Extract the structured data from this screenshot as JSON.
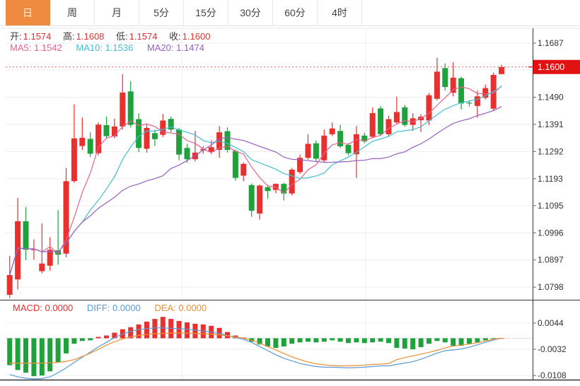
{
  "toolbar": {
    "tabs": [
      {
        "label": "日",
        "active": true
      },
      {
        "label": "周",
        "active": false
      },
      {
        "label": "月",
        "active": false
      },
      {
        "label": "5分",
        "active": false
      },
      {
        "label": "15分",
        "active": false
      },
      {
        "label": "30分",
        "active": false
      },
      {
        "label": "60分",
        "active": false
      },
      {
        "label": "4时",
        "active": false
      }
    ]
  },
  "ohlc": [
    {
      "label": "开:",
      "value": "1.1574"
    },
    {
      "label": "高:",
      "value": "1.1608"
    },
    {
      "label": "低:",
      "value": "1.1574"
    },
    {
      "label": "收:",
      "value": "1.1600"
    }
  ],
  "ma": [
    {
      "label": "MA5:",
      "value": "1.1542"
    },
    {
      "label": "MA10:",
      "value": "1.1536"
    },
    {
      "label": "MA20:",
      "value": "1.1474"
    }
  ],
  "macd_row": [
    {
      "label": "MACD:",
      "value": "0.0000"
    },
    {
      "label": "DIFF:",
      "value": "0.0000"
    },
    {
      "label": "DEA:",
      "value": "0.0000"
    }
  ],
  "price_axis": {
    "labels": [
      {
        "value": 1.1687,
        "text": "1.1687"
      },
      {
        "value": 1.149,
        "text": "1.1490"
      },
      {
        "value": 1.1391,
        "text": "1.1391"
      },
      {
        "value": 1.1292,
        "text": "1.1292"
      },
      {
        "value": 1.1193,
        "text": "1.1193"
      },
      {
        "value": 1.1095,
        "text": "1.1095"
      },
      {
        "value": 1.0996,
        "text": "1.0996"
      },
      {
        "value": 1.0897,
        "text": "1.0897"
      },
      {
        "value": 1.0798,
        "text": "1.0798"
      }
    ],
    "current": {
      "value": 1.16,
      "text": "1.1600"
    }
  },
  "macd_axis": {
    "labels": [
      {
        "value": 0.0044,
        "text": "0.0044"
      },
      {
        "value": -0.0032,
        "text": "-0.0032"
      },
      {
        "value": -0.0108,
        "text": "-0.0108"
      }
    ]
  },
  "colors": {
    "up": "#e8312f",
    "down": "#1fa23c",
    "badge": "#e31212",
    "dotted_price": "#e45c5c",
    "ma5": "#e7618f",
    "ma10": "#45bdd3",
    "ma20": "#9a5fc0",
    "diff": "#5a9bd5",
    "dea": "#ea8f33",
    "grid": "#ebedef",
    "axis_line": "#333333",
    "axis_text": "#333333",
    "active_tab": "#ef8b41",
    "zero_dash": "#c4c8cc"
  },
  "chart_data": {
    "type": "candlestick+macd",
    "main": {
      "ylim": [
        1.0752,
        1.1741
      ],
      "grid_values": [
        1.1687,
        1.1589,
        1.149,
        1.1391,
        1.1292,
        1.1193,
        1.1095,
        1.0996,
        1.0897,
        1.0798
      ],
      "current_price": 1.16,
      "ma_periods": [
        5,
        10,
        20
      ],
      "candles_ohlc": [
        [
          1.077,
          1.0912,
          1.0758,
          1.0842
        ],
        [
          1.0826,
          1.1124,
          1.079,
          1.1038
        ],
        [
          1.1038,
          1.109,
          1.0896,
          1.0934
        ],
        [
          1.0934,
          1.0972,
          1.0898,
          1.0936
        ],
        [
          1.0856,
          1.103,
          1.0848,
          1.0884
        ],
        [
          1.0876,
          1.098,
          1.0858,
          1.0934
        ],
        [
          1.0932,
          1.1078,
          1.088,
          1.0916
        ],
        [
          1.092,
          1.1232,
          1.0906,
          1.1184
        ],
        [
          1.1184,
          1.1464,
          1.1178,
          1.134
        ],
        [
          1.1312,
          1.1416,
          1.1298,
          1.1342
        ],
        [
          1.1338,
          1.1362,
          1.1272,
          1.1284
        ],
        [
          1.1286,
          1.1398,
          1.1278,
          1.139
        ],
        [
          1.1388,
          1.142,
          1.1338,
          1.1348
        ],
        [
          1.1347,
          1.1412,
          1.134,
          1.1383
        ],
        [
          1.1383,
          1.1574,
          1.1372,
          1.1507
        ],
        [
          1.1511,
          1.1548,
          1.138,
          1.1389
        ],
        [
          1.141,
          1.1431,
          1.129,
          1.1305
        ],
        [
          1.1302,
          1.1394,
          1.1288,
          1.1378
        ],
        [
          1.1359,
          1.1372,
          1.1312,
          1.1337
        ],
        [
          1.1353,
          1.1429,
          1.1345,
          1.1405
        ],
        [
          1.1411,
          1.142,
          1.1362,
          1.1372
        ],
        [
          1.1372,
          1.1378,
          1.126,
          1.1281
        ],
        [
          1.1305,
          1.132,
          1.1252,
          1.1264
        ],
        [
          1.1264,
          1.1367,
          1.1256,
          1.1288
        ],
        [
          1.1296,
          1.1312,
          1.1284,
          1.1301
        ],
        [
          1.129,
          1.1333,
          1.1283,
          1.1308
        ],
        [
          1.1298,
          1.1385,
          1.1269,
          1.1362
        ],
        [
          1.1366,
          1.138,
          1.1288,
          1.1298
        ],
        [
          1.1294,
          1.13,
          1.1186,
          1.1196
        ],
        [
          1.1204,
          1.1252,
          1.1184,
          1.1247
        ],
        [
          1.117,
          1.1176,
          1.1054,
          1.1076
        ],
        [
          1.1066,
          1.1172,
          1.1044,
          1.1168
        ],
        [
          1.1162,
          1.117,
          1.112,
          1.1148
        ],
        [
          1.1152,
          1.1176,
          1.114,
          1.1174
        ],
        [
          1.1174,
          1.1178,
          1.1114,
          1.1139
        ],
        [
          1.1139,
          1.1232,
          1.1132,
          1.1226
        ],
        [
          1.1217,
          1.1281,
          1.121,
          1.1269
        ],
        [
          1.1269,
          1.1355,
          1.1262,
          1.132
        ],
        [
          1.1322,
          1.1332,
          1.1256,
          1.1266
        ],
        [
          1.126,
          1.1372,
          1.1252,
          1.135
        ],
        [
          1.1355,
          1.1398,
          1.1348,
          1.1376
        ],
        [
          1.1367,
          1.1389,
          1.1305,
          1.1311
        ],
        [
          1.1316,
          1.1322,
          1.1278,
          1.1286
        ],
        [
          1.1282,
          1.1385,
          1.1196,
          1.1355
        ],
        [
          1.135,
          1.136,
          1.1322,
          1.1329
        ],
        [
          1.1346,
          1.1453,
          1.134,
          1.1432
        ],
        [
          1.1449,
          1.1458,
          1.1348,
          1.1355
        ],
        [
          1.1355,
          1.1423,
          1.1348,
          1.141
        ],
        [
          1.1398,
          1.1492,
          1.1392,
          1.1436
        ],
        [
          1.1453,
          1.1462,
          1.1382,
          1.1389
        ],
        [
          1.1389,
          1.1432,
          1.1367,
          1.1413
        ],
        [
          1.1406,
          1.1428,
          1.1363,
          1.1419
        ],
        [
          1.1405,
          1.1505,
          1.1389,
          1.1497
        ],
        [
          1.1484,
          1.1633,
          1.1478,
          1.1583
        ],
        [
          1.1596,
          1.1613,
          1.1514,
          1.1527
        ],
        [
          1.1506,
          1.1617,
          1.1493,
          1.1561
        ],
        [
          1.1559,
          1.1565,
          1.1445,
          1.1467
        ],
        [
          1.147,
          1.1478,
          1.1456,
          1.1467
        ],
        [
          1.1458,
          1.1514,
          1.1415,
          1.1493
        ],
        [
          1.1488,
          1.1536,
          1.1482,
          1.1523
        ],
        [
          1.1448,
          1.158,
          1.144,
          1.1571
        ],
        [
          1.1574,
          1.1608,
          1.1574,
          1.16
        ]
      ]
    },
    "macd": {
      "ylim": [
        -0.012,
        0.01095
      ],
      "grid_values": [
        0.0044,
        -0.0032,
        -0.0108
      ],
      "hist": [
        -0.0078,
        -0.0092,
        -0.01,
        -0.011,
        -0.0108,
        -0.0096,
        -0.007,
        -0.0044,
        -0.0016,
        -0.0008,
        -0.0006,
        0.0004,
        0.0008,
        0.0016,
        0.0026,
        0.0032,
        0.004,
        0.0048,
        0.0056,
        0.0062,
        0.0056,
        0.005,
        0.0046,
        0.0042,
        0.004,
        0.0036,
        0.003,
        0.0018,
        0.0008,
        0.0002,
        -0.001,
        -0.0018,
        -0.0024,
        -0.0028,
        -0.0024,
        -0.0016,
        -0.0012,
        -0.001,
        -0.0012,
        -0.001,
        -0.0006,
        -0.001,
        -0.0014,
        -0.0012,
        -0.0014,
        -0.0012,
        -0.001,
        -0.0014,
        -0.0028,
        -0.003,
        -0.0032,
        -0.0026,
        -0.0016,
        -0.0008,
        -0.0012,
        -0.0022,
        -0.0022,
        -0.0016,
        -0.0012,
        -0.0006,
        -0.0002,
        0.0
      ],
      "diff": [
        -0.0105,
        -0.0112,
        -0.0116,
        -0.0118,
        -0.0117,
        -0.0112,
        -0.01,
        -0.0086,
        -0.007,
        -0.0055,
        -0.004,
        -0.0025,
        -0.0012,
        0.0002,
        0.0012,
        0.002,
        0.0025,
        0.0028,
        0.003,
        0.003,
        0.0029,
        0.0028,
        0.0026,
        0.0024,
        0.0021,
        0.0018,
        0.0014,
        0.0008,
        0.0002,
        -0.0003,
        -0.0012,
        -0.0024,
        -0.0036,
        -0.0048,
        -0.0058,
        -0.0066,
        -0.0073,
        -0.0078,
        -0.0082,
        -0.0084,
        -0.0084,
        -0.0085,
        -0.0086,
        -0.0085,
        -0.0084,
        -0.0082,
        -0.008,
        -0.008,
        -0.0076,
        -0.0072,
        -0.0068,
        -0.0061,
        -0.0052,
        -0.0043,
        -0.0036,
        -0.0034,
        -0.0031,
        -0.0026,
        -0.0019,
        -0.0012,
        -0.0005,
        0.0
      ],
      "dea": [
        -0.0072,
        -0.0072,
        -0.0072,
        -0.0072,
        -0.0072,
        -0.0071,
        -0.007,
        -0.0067,
        -0.0062,
        -0.0053,
        -0.0043,
        -0.0032,
        -0.002,
        -0.001,
        -0.0002,
        0.0004,
        0.0008,
        0.0011,
        0.0013,
        0.0014,
        0.0015,
        0.0015,
        0.0015,
        0.0014,
        0.0013,
        0.0012,
        0.001,
        0.0007,
        0.0004,
        0.0,
        -0.0006,
        -0.0014,
        -0.0024,
        -0.0034,
        -0.0044,
        -0.0054,
        -0.0062,
        -0.0069,
        -0.0074,
        -0.0077,
        -0.0079,
        -0.008,
        -0.008,
        -0.0079,
        -0.0078,
        -0.0076,
        -0.0075,
        -0.0073,
        -0.0062,
        -0.0056,
        -0.0051,
        -0.0046,
        -0.0041,
        -0.0035,
        -0.0028,
        -0.0023,
        -0.002,
        -0.0017,
        -0.0013,
        -0.0008,
        -0.0003,
        0.0
      ]
    }
  }
}
